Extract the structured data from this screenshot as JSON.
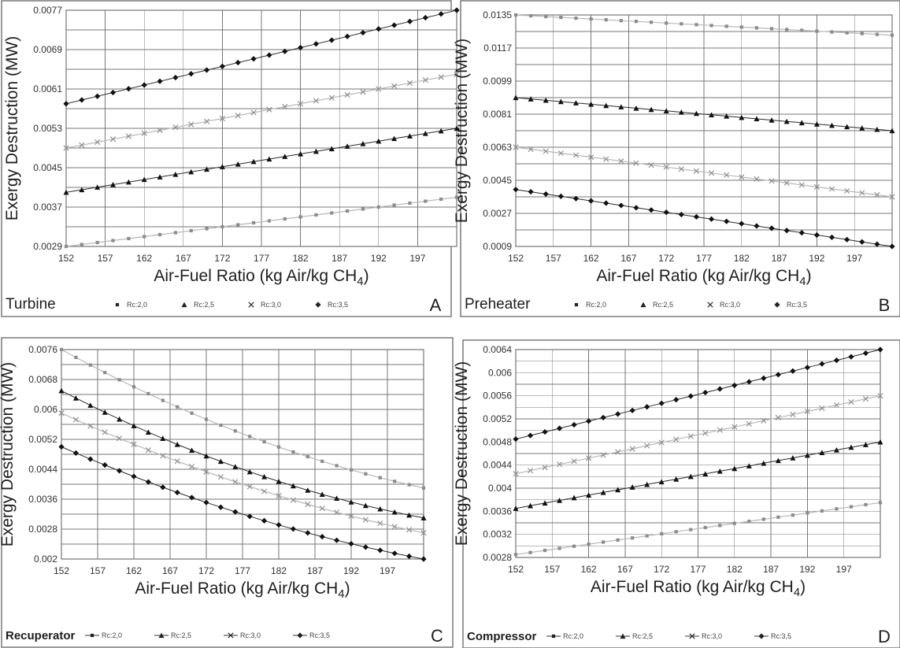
{
  "figure": {
    "panels": [
      {
        "name": "Turbine",
        "letter": "A",
        "legend_style": "marker"
      },
      {
        "name": "Preheater",
        "letter": "B",
        "legend_style": "marker"
      },
      {
        "name": "Recuperator",
        "letter": "C",
        "legend_style": "line"
      },
      {
        "name": "Compressor",
        "letter": "D",
        "legend_style": "line"
      }
    ],
    "x_axis_title": "Air-Fuel Ratio (kg Air/kg CH",
    "x_axis_subscript": "4",
    "x_axis_close": ")",
    "y_axis_title": "Exergy Destruction (MW)",
    "colors": {
      "marker_light": "#8c8c8c",
      "marker_dark": "#111111",
      "line_light": "#b8b8b8",
      "line_dark": "#2a2a2a",
      "grid": "#777777",
      "frame": "#707070"
    }
  },
  "chart_data": [
    {
      "type": "line",
      "panel": "A",
      "title": "Turbine",
      "xlabel": "Air-Fuel Ratio (kg Air/kg CH4)",
      "ylabel": "Exergy Destruction (MW)",
      "x_ticks": [
        "152",
        "157",
        "162",
        "167",
        "172",
        "177",
        "182",
        "187",
        "192",
        "197"
      ],
      "y_ticks": [
        "0.0029",
        "0.0037",
        "0.0045",
        "0.0053",
        "0.0061",
        "0.0069",
        "0.0077"
      ],
      "xlim": [
        152,
        202
      ],
      "ylim": [
        0.0029,
        0.0077
      ],
      "grid": true,
      "legend_position": "bottom",
      "series": [
        {
          "name": "Rc:2,0",
          "marker": "square",
          "color": "#8c8c8c",
          "start": 0.0029,
          "end": 0.0039,
          "curve": 0.0,
          "count": 26
        },
        {
          "name": "Rc:2,5",
          "marker": "triangle",
          "color": "#111111",
          "start": 0.004,
          "end": 0.0053,
          "curve": 0.0,
          "count": 26
        },
        {
          "name": "Rc:3,0",
          "marker": "x",
          "color": "#8c8c8c",
          "start": 0.0049,
          "end": 0.0064,
          "curve": 0.0,
          "count": 26
        },
        {
          "name": "Rc:3,5",
          "marker": "diamond",
          "color": "#111111",
          "start": 0.0058,
          "end": 0.0077,
          "curve": 0.0,
          "count": 26
        }
      ]
    },
    {
      "type": "line",
      "panel": "B",
      "title": "Preheater",
      "xlabel": "Air-Fuel Ratio (kg Air/kg CH4)",
      "ylabel": "Exergy Destruction (MW)",
      "x_ticks": [
        "152",
        "157",
        "162",
        "167",
        "172",
        "177",
        "182",
        "187",
        "192",
        "197"
      ],
      "y_ticks": [
        "0.0009",
        "0.0027",
        "0.0045",
        "0.0063",
        "0.0081",
        "0.0099",
        "0.0117",
        "0.0135"
      ],
      "xlim": [
        152,
        202
      ],
      "ylim": [
        0.0009,
        0.0135
      ],
      "grid": true,
      "legend_position": "bottom",
      "series": [
        {
          "name": "Rc:2,0",
          "marker": "square",
          "color": "#8c8c8c",
          "start": 0.0135,
          "end": 0.0124,
          "curve": 0.0,
          "count": 26
        },
        {
          "name": "Rc:2,5",
          "marker": "triangle",
          "color": "#111111",
          "start": 0.009,
          "end": 0.0072,
          "curve": 0.0,
          "count": 26
        },
        {
          "name": "Rc:3,0",
          "marker": "x",
          "color": "#8c8c8c",
          "start": 0.0063,
          "end": 0.0036,
          "curve": 0.0,
          "count": 26
        },
        {
          "name": "Rc:3,5",
          "marker": "diamond",
          "color": "#111111",
          "start": 0.004,
          "end": 0.0009,
          "curve": 0.0,
          "count": 26
        }
      ]
    },
    {
      "type": "line",
      "panel": "C",
      "title": "Recuperator",
      "xlabel": "Air-Fuel Ratio (kg Air/kg CH4)",
      "ylabel": "Exergy Destruction (MW)",
      "x_ticks": [
        "152",
        "157",
        "162",
        "167",
        "172",
        "177",
        "182",
        "187",
        "192",
        "197"
      ],
      "y_ticks": [
        "0.002",
        "0.0028",
        "0.0036",
        "0.0044",
        "0.0052",
        "0.006",
        "0.0068",
        "0.0076"
      ],
      "xlim": [
        152,
        202
      ],
      "ylim": [
        0.002,
        0.0076
      ],
      "grid": true,
      "legend_position": "bottom",
      "series": [
        {
          "name": "Rc:2,0",
          "marker": "square",
          "color": "#8c8c8c",
          "start": 0.0076,
          "end": 0.0039,
          "curve": 0.0004,
          "count": 26
        },
        {
          "name": "Rc:2,5",
          "marker": "triangle",
          "color": "#111111",
          "start": 0.0065,
          "end": 0.0031,
          "curve": 0.0004,
          "count": 26
        },
        {
          "name": "Rc:3,0",
          "marker": "x",
          "color": "#8c8c8c",
          "start": 0.0059,
          "end": 0.0027,
          "curve": 0.0003,
          "count": 26
        },
        {
          "name": "Rc:3,5",
          "marker": "diamond",
          "color": "#111111",
          "start": 0.005,
          "end": 0.002,
          "curve": 0.0003,
          "count": 26
        }
      ]
    },
    {
      "type": "line",
      "panel": "D",
      "title": "Compressor",
      "xlabel": "Air-Fuel Ratio (kg Air/kg CH4)",
      "ylabel": "Exergy Destruction (MW)",
      "x_ticks": [
        "152",
        "157",
        "162",
        "167",
        "172",
        "177",
        "182",
        "187",
        "192",
        "197"
      ],
      "y_ticks": [
        "0.0028",
        "0.0032",
        "0.0036",
        "0.004",
        "0.0044",
        "0.0048",
        "0.0052",
        "0.0056",
        "0.006",
        "0.0064"
      ],
      "xlim": [
        152,
        202
      ],
      "ylim": [
        0.0028,
        0.0064
      ],
      "grid": true,
      "legend_position": "bottom",
      "series": [
        {
          "name": "Rc:2,0",
          "marker": "square",
          "color": "#8c8c8c",
          "start": 0.00285,
          "end": 0.00375,
          "curve": 0.0,
          "count": 26
        },
        {
          "name": "Rc:2,5",
          "marker": "triangle",
          "color": "#111111",
          "start": 0.00365,
          "end": 0.0048,
          "curve": 0.0,
          "count": 26
        },
        {
          "name": "Rc:3,0",
          "marker": "x",
          "color": "#8c8c8c",
          "start": 0.00425,
          "end": 0.0056,
          "curve": 0.0,
          "count": 26
        },
        {
          "name": "Rc:3,5",
          "marker": "diamond",
          "color": "#111111",
          "start": 0.00485,
          "end": 0.0064,
          "curve": 0.0,
          "count": 26
        }
      ]
    }
  ]
}
